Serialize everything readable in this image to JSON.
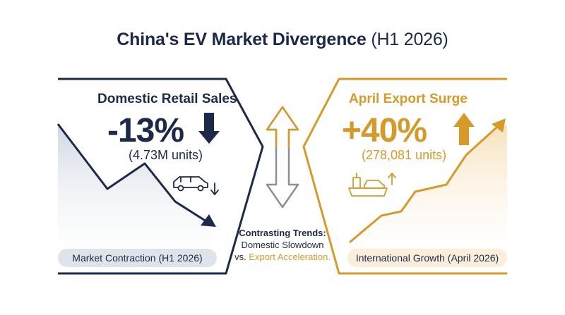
{
  "title": {
    "main": "China's EV Market Divergence",
    "paren": "(H1 2026)"
  },
  "domestic": {
    "heading": "Domestic Retail Sales",
    "value": "-13%",
    "units": "(4.73M units)",
    "footer": "Market Contraction (H1 2026)",
    "trend": "down",
    "color": "#1c2a4a"
  },
  "export": {
    "heading": "April Export Surge",
    "value": "+40%",
    "units": "(278,081 units)",
    "footer": "International Growth (April 2026)",
    "trend": "up",
    "color": "#d69a2a"
  },
  "contrast": {
    "heading": "Contrasting Trends:",
    "line1": "Domestic Slowdown",
    "line2_prefix": "vs.",
    "line2_highlight": "Export Acceleration."
  },
  "icons": {
    "domestic_arrow": "arrow-down-icon",
    "export_arrow": "arrow-up-icon",
    "car": "car-icon",
    "ship": "cargo-ship-icon",
    "divergence": "double-arrow-icon"
  }
}
